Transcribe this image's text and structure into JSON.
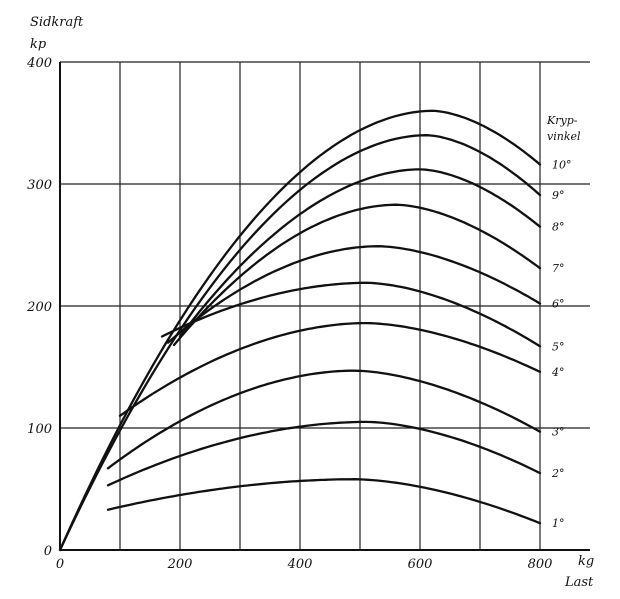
{
  "chart_data": {
    "type": "line",
    "ylabel_top": "Sidkraft",
    "ylabel_unit": "kp",
    "xlabel_unit": "kg",
    "xlabel": "Last",
    "legend_title_1": "Kryp-",
    "legend_title_2": "vinkel",
    "xlim": [
      0,
      800
    ],
    "ylim": [
      0,
      400
    ],
    "x_ticks": [
      0,
      200,
      400,
      600,
      800
    ],
    "y_ticks": [
      0,
      100,
      200,
      300,
      400
    ],
    "x_tick_labels": [
      "0",
      "200",
      "400",
      "600",
      "800"
    ],
    "y_tick_labels": [
      "0",
      "100",
      "200",
      "300",
      "400"
    ],
    "grid": true,
    "x_grid_step": 100,
    "y_grid_step": 100,
    "series": [
      {
        "name": "1°",
        "start": [
          80,
          33
        ],
        "peak": [
          490,
          58
        ],
        "end": [
          800,
          22
        ]
      },
      {
        "name": "2°",
        "start": [
          80,
          53
        ],
        "peak": [
          510,
          105
        ],
        "end": [
          800,
          63
        ]
      },
      {
        "name": "3°",
        "start": [
          80,
          67
        ],
        "peak": [
          490,
          147
        ],
        "end": [
          800,
          97
        ]
      },
      {
        "name": "4°",
        "start": [
          100,
          110
        ],
        "peak": [
          510,
          186
        ],
        "end": [
          800,
          146
        ]
      },
      {
        "name": "5°",
        "start": [
          170,
          175
        ],
        "peak": [
          510,
          219
        ],
        "end": [
          800,
          167
        ]
      },
      {
        "name": "6°",
        "start": [
          180,
          170
        ],
        "peak": [
          530,
          249
        ],
        "end": [
          800,
          202
        ]
      },
      {
        "name": "7°",
        "start": [
          190,
          168
        ],
        "peak": [
          560,
          283
        ],
        "end": [
          800,
          231
        ]
      },
      {
        "name": "8°",
        "start": [
          200,
          175
        ],
        "peak": [
          600,
          312
        ],
        "end": [
          800,
          265
        ]
      },
      {
        "name": "9°",
        "start": [
          0,
          0
        ],
        "peak": [
          610,
          340
        ],
        "end": [
          800,
          291
        ]
      },
      {
        "name": "10°",
        "start": [
          0,
          0
        ],
        "peak": [
          620,
          360
        ],
        "end": [
          800,
          316
        ]
      }
    ]
  }
}
